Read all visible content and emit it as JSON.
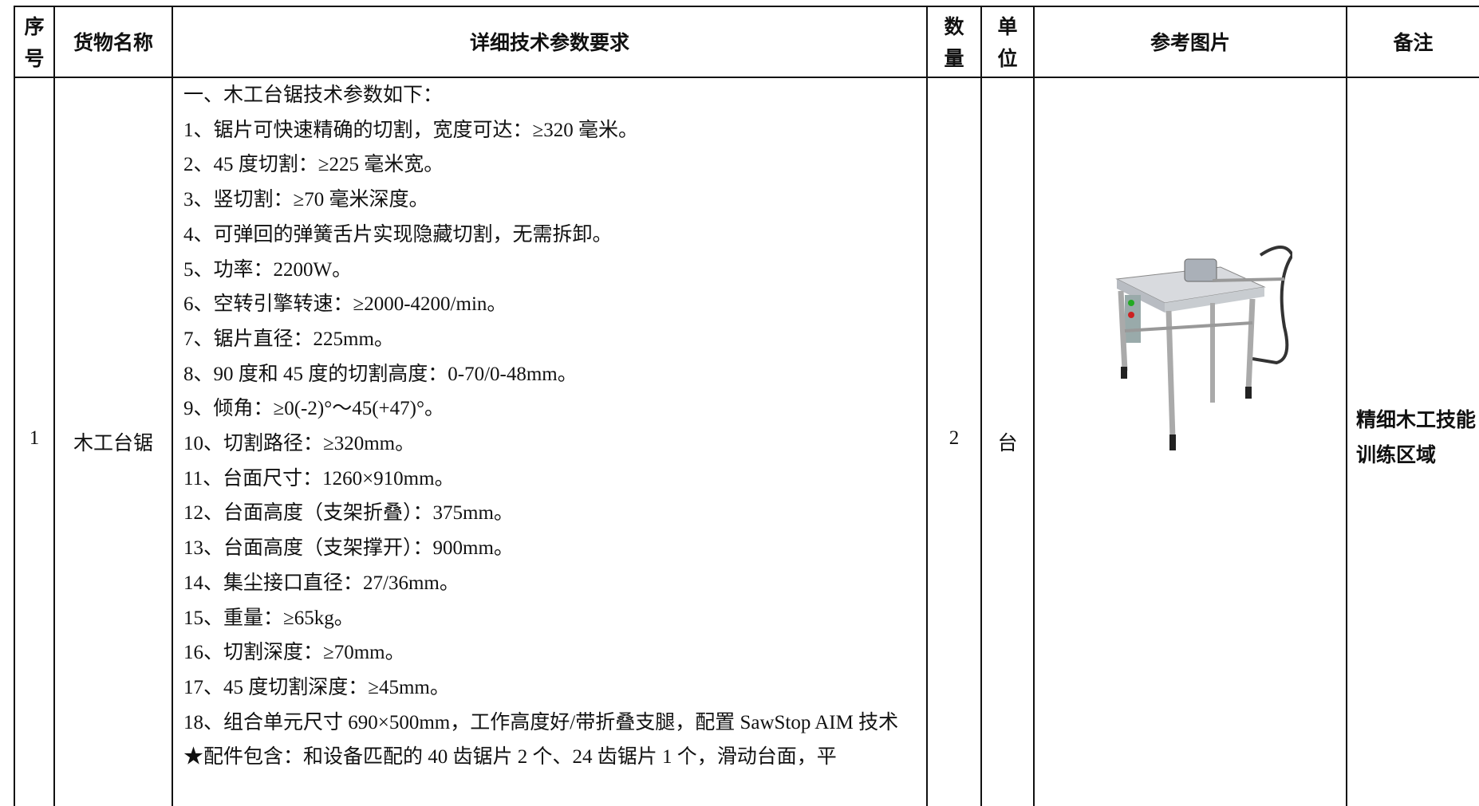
{
  "table": {
    "headers": [
      "序号",
      "货物名称",
      "详细技术参数要求",
      "数量",
      "单位",
      "参考图片",
      "备注"
    ],
    "rows": [
      {
        "index": "1",
        "name": "木工台锯",
        "specs": [
          "一、木工台锯技术参数如下：",
          "1、锯片可快速精确的切割，宽度可达：≥320 毫米。",
          "2、45 度切割：≥225 毫米宽。",
          "3、竖切割：≥70 毫米深度。",
          "4、可弹回的弹簧舌片实现隐藏切割，无需拆卸。",
          "5、功率：2200W。",
          "6、空转引擎转速：≥2000-4200/min。",
          "7、锯片直径：225mm。",
          "8、90 度和 45 度的切割高度：0-70/0-48mm。",
          "9、倾角：≥0(-2)°～45(+47)°。",
          "10、切割路径：≥320mm。",
          "11、台面尺寸：1260×910mm。",
          "12、台面高度（支架折叠）：375mm。",
          "13、台面高度（支架撑开）：900mm。",
          "14、集尘接口直径：27/36mm。",
          "15、重量：≥65kg。",
          "16、切割深度：≥70mm。",
          "17、45 度切割深度：≥45mm。",
          "18、组合单元尺寸 690×500mm，工作高度好/带折叠支腿，配置 SawStop AIM 技术",
          "★配件包含：和设备匹配的 40 齿锯片 2 个、24 齿锯片 1 个，滑动台面，平"
        ],
        "quantity": "2",
        "unit": "台",
        "remark": "精细木工技能训练区域"
      }
    ]
  }
}
